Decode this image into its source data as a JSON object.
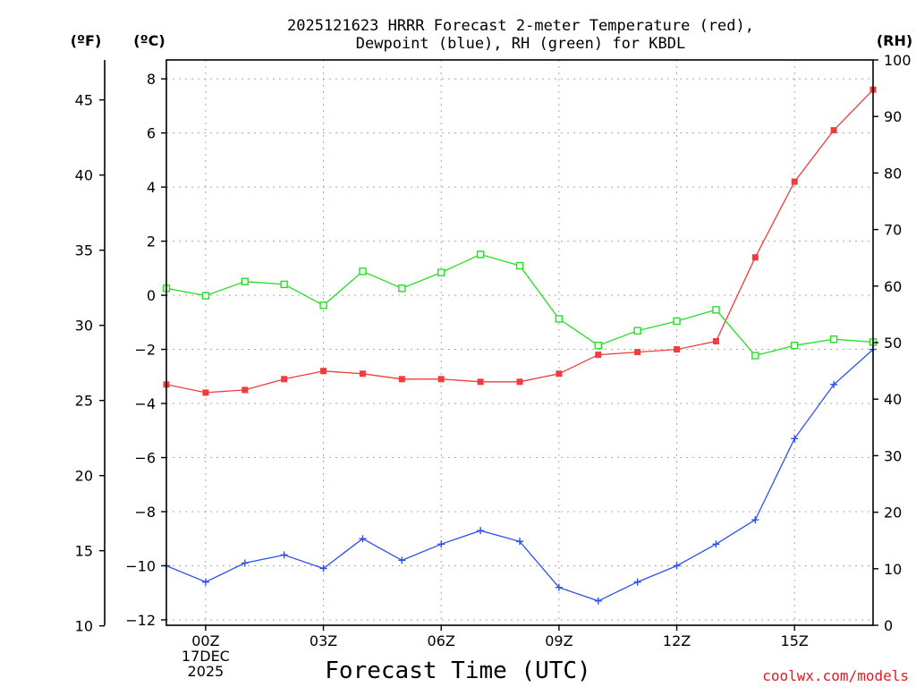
{
  "chart_data": {
    "type": "line",
    "title": "2025121623 HRRR Forecast 2-meter Temperature (red),",
    "subtitle": "Dewpoint (blue), RH (green) for KBDL",
    "xlabel": "Forecast Time (UTC)",
    "credit": "coolwx.com/models",
    "left_f_unit": "(ºF)",
    "left_c_unit": "(ºC)",
    "right_unit": "(RH)",
    "x": [
      -1,
      0,
      1,
      2,
      3,
      4,
      5,
      6,
      7,
      8,
      9,
      10,
      11,
      12,
      13,
      14,
      15,
      16,
      17
    ],
    "xlim": [
      -1,
      17
    ],
    "x_ticks": [
      {
        "x": 0,
        "lines": [
          "00Z",
          "17DEC",
          "2025"
        ]
      },
      {
        "x": 3,
        "lines": [
          "03Z"
        ]
      },
      {
        "x": 6,
        "lines": [
          "06Z"
        ]
      },
      {
        "x": 9,
        "lines": [
          "09Z"
        ]
      },
      {
        "x": 12,
        "lines": [
          "12Z"
        ]
      },
      {
        "x": 15,
        "lines": [
          "15Z"
        ]
      }
    ],
    "y_c_lim": [
      -12.2,
      8.7
    ],
    "y_c_ticks": [
      8,
      6,
      4,
      2,
      0,
      -2,
      -4,
      -6,
      -8,
      -10,
      -12
    ],
    "y_c_tick_labels": [
      "8",
      "6",
      "4",
      "2",
      "0",
      "−2",
      "−4",
      "−6",
      "−8",
      "−10",
      "−12"
    ],
    "y_f_ticks": [
      45,
      40,
      35,
      30,
      25,
      20,
      15,
      10
    ],
    "y_rh_lim": [
      0,
      100
    ],
    "y_rh_ticks": [
      100,
      90,
      80,
      70,
      60,
      50,
      40,
      30,
      20,
      10,
      0
    ],
    "grid": true,
    "series": [
      {
        "name": "Temperature (red)",
        "axis": "c",
        "color": "#f03c3c",
        "marker": "filled-square",
        "values": [
          -3.3,
          -3.6,
          -3.5,
          -3.1,
          -2.8,
          -2.9,
          -3.1,
          -3.1,
          -3.2,
          -3.2,
          -2.9,
          -2.2,
          -2.1,
          -2.0,
          -1.7,
          1.4,
          4.2,
          6.1,
          7.6
        ]
      },
      {
        "name": "Dewpoint (blue)",
        "axis": "c",
        "color": "#2c4ff0",
        "marker": "plus",
        "values": [
          -10.0,
          -10.6,
          -9.9,
          -9.6,
          -10.1,
          -9.0,
          -9.8,
          -9.2,
          -8.7,
          -9.1,
          -10.8,
          -11.3,
          -10.6,
          -10.0,
          -9.2,
          -8.3,
          -5.3,
          -3.3,
          -2.0
        ]
      },
      {
        "name": "RH (green)",
        "axis": "rh",
        "color": "#24e024",
        "marker": "open-square",
        "values": [
          59.6,
          58.3,
          60.8,
          60.3,
          56.6,
          62.6,
          59.6,
          62.4,
          65.6,
          63.6,
          54.2,
          49.5,
          52.1,
          53.8,
          55.8,
          47.7,
          49.5,
          50.6,
          50.1
        ]
      }
    ]
  }
}
